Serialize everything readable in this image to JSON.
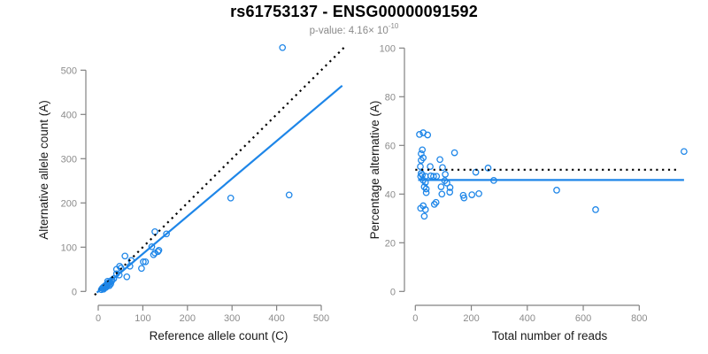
{
  "header": {
    "title": "rs61753137 - ENSG00000091592",
    "subtitle_base": "p-value: 4.16× 10",
    "subtitle_exponent": "-10"
  },
  "colors": {
    "point": "#1E86E8",
    "fit_line": "#1E86E8",
    "identity_line": "#000000",
    "axis": "#828282",
    "tick_label": "#8c8c8c",
    "axis_title": "#1a1a1a"
  },
  "chart_data": [
    {
      "type": "scatter",
      "panel": "left",
      "xlabel": "Reference allele count (C)",
      "ylabel": "Alternative allele count (A)",
      "xlim": [
        0,
        500
      ],
      "ylim": [
        0,
        500
      ],
      "xticks": [
        0,
        100,
        200,
        300,
        400,
        500
      ],
      "yticks": [
        0,
        100,
        200,
        300,
        400,
        500
      ],
      "grid": false,
      "points": [
        [
          7,
          4
        ],
        [
          9,
          7
        ],
        [
          11,
          9
        ],
        [
          13,
          11
        ],
        [
          15,
          8
        ],
        [
          16,
          13
        ],
        [
          18,
          15
        ],
        [
          19,
          11
        ],
        [
          20,
          17
        ],
        [
          22,
          15
        ],
        [
          23,
          20
        ],
        [
          25,
          13
        ],
        [
          26,
          21
        ],
        [
          28,
          17
        ],
        [
          30,
          23
        ],
        [
          12,
          5
        ],
        [
          17,
          9
        ],
        [
          21,
          23
        ],
        [
          31,
          26
        ],
        [
          35,
          29
        ],
        [
          41,
          40
        ],
        [
          47,
          37
        ],
        [
          41,
          50
        ],
        [
          51,
          53
        ],
        [
          48,
          57
        ],
        [
          64,
          33
        ],
        [
          60,
          80
        ],
        [
          71,
          57
        ],
        [
          74,
          70
        ],
        [
          97,
          52
        ],
        [
          101,
          67
        ],
        [
          106,
          67
        ],
        [
          120,
          101
        ],
        [
          124,
          83
        ],
        [
          127,
          87
        ],
        [
          134,
          90
        ],
        [
          136,
          93
        ],
        [
          127,
          135
        ],
        [
          153,
          130
        ],
        [
          297,
          211
        ],
        [
          428,
          218
        ],
        [
          413,
          551
        ]
      ],
      "lines": [
        {
          "name": "identity-line",
          "legend": "y = x",
          "style": "dotted",
          "color": "#000000",
          "points": [
            [
              -8,
              -8
            ],
            [
              552,
              552
            ]
          ]
        },
        {
          "name": "fit-line",
          "legend": "fit slope 0.85",
          "style": "solid",
          "color": "#1E86E8",
          "points": [
            [
              -3,
              -2.5
            ],
            [
              547,
              465
            ]
          ]
        }
      ]
    },
    {
      "type": "scatter",
      "panel": "right",
      "xlabel": "Total number of reads",
      "ylabel": "Percentage alternative (A)",
      "xlim": [
        0,
        800
      ],
      "ylim": [
        0,
        100
      ],
      "xticks": [
        0,
        200,
        400,
        600,
        800
      ],
      "yticks": [
        0,
        20,
        40,
        60,
        80,
        100
      ],
      "grid": false,
      "points": [
        [
          15,
          64.5
        ],
        [
          28,
          65.2
        ],
        [
          44,
          64.3
        ],
        [
          25,
          58.2
        ],
        [
          21,
          56.6
        ],
        [
          28,
          54.9
        ],
        [
          21,
          53.9
        ],
        [
          140,
          57.0
        ],
        [
          88,
          54.2
        ],
        [
          97,
          50.9
        ],
        [
          18,
          51.3
        ],
        [
          53,
          51.3
        ],
        [
          107,
          48.1
        ],
        [
          21,
          48.5
        ],
        [
          25,
          47.9
        ],
        [
          19,
          47.3
        ],
        [
          36,
          47.3
        ],
        [
          55,
          47.5
        ],
        [
          65,
          47.3
        ],
        [
          76,
          47.3
        ],
        [
          28,
          45.7
        ],
        [
          36,
          44.8
        ],
        [
          105,
          45.5
        ],
        [
          113,
          44.5
        ],
        [
          32,
          43.0
        ],
        [
          39,
          42.1
        ],
        [
          39,
          40.6
        ],
        [
          95,
          40.0
        ],
        [
          123,
          40.8
        ],
        [
          92,
          43.0
        ],
        [
          124,
          42.7
        ],
        [
          28,
          35.2
        ],
        [
          68,
          35.8
        ],
        [
          74,
          36.6
        ],
        [
          36,
          33.6
        ],
        [
          19,
          34.2
        ],
        [
          32,
          30.9
        ],
        [
          171,
          39.5
        ],
        [
          174,
          38.4
        ],
        [
          202,
          39.7
        ],
        [
          227,
          40.2
        ],
        [
          216,
          49.0
        ],
        [
          260,
          50.7
        ],
        [
          280,
          45.6
        ],
        [
          505,
          41.6
        ],
        [
          644,
          33.6
        ],
        [
          960,
          57.5
        ]
      ],
      "lines": [
        {
          "name": "expected-50-percent-line",
          "legend": "50%",
          "style": "dotted",
          "color": "#000000",
          "points": [
            [
              0,
              50
            ],
            [
              945,
              50
            ]
          ]
        },
        {
          "name": "mean-percentage-line",
          "legend": "mean 45.8%",
          "style": "solid",
          "color": "#1E86E8",
          "points": [
            [
              10,
              45.8
            ],
            [
              960,
              45.8
            ]
          ]
        }
      ]
    }
  ]
}
